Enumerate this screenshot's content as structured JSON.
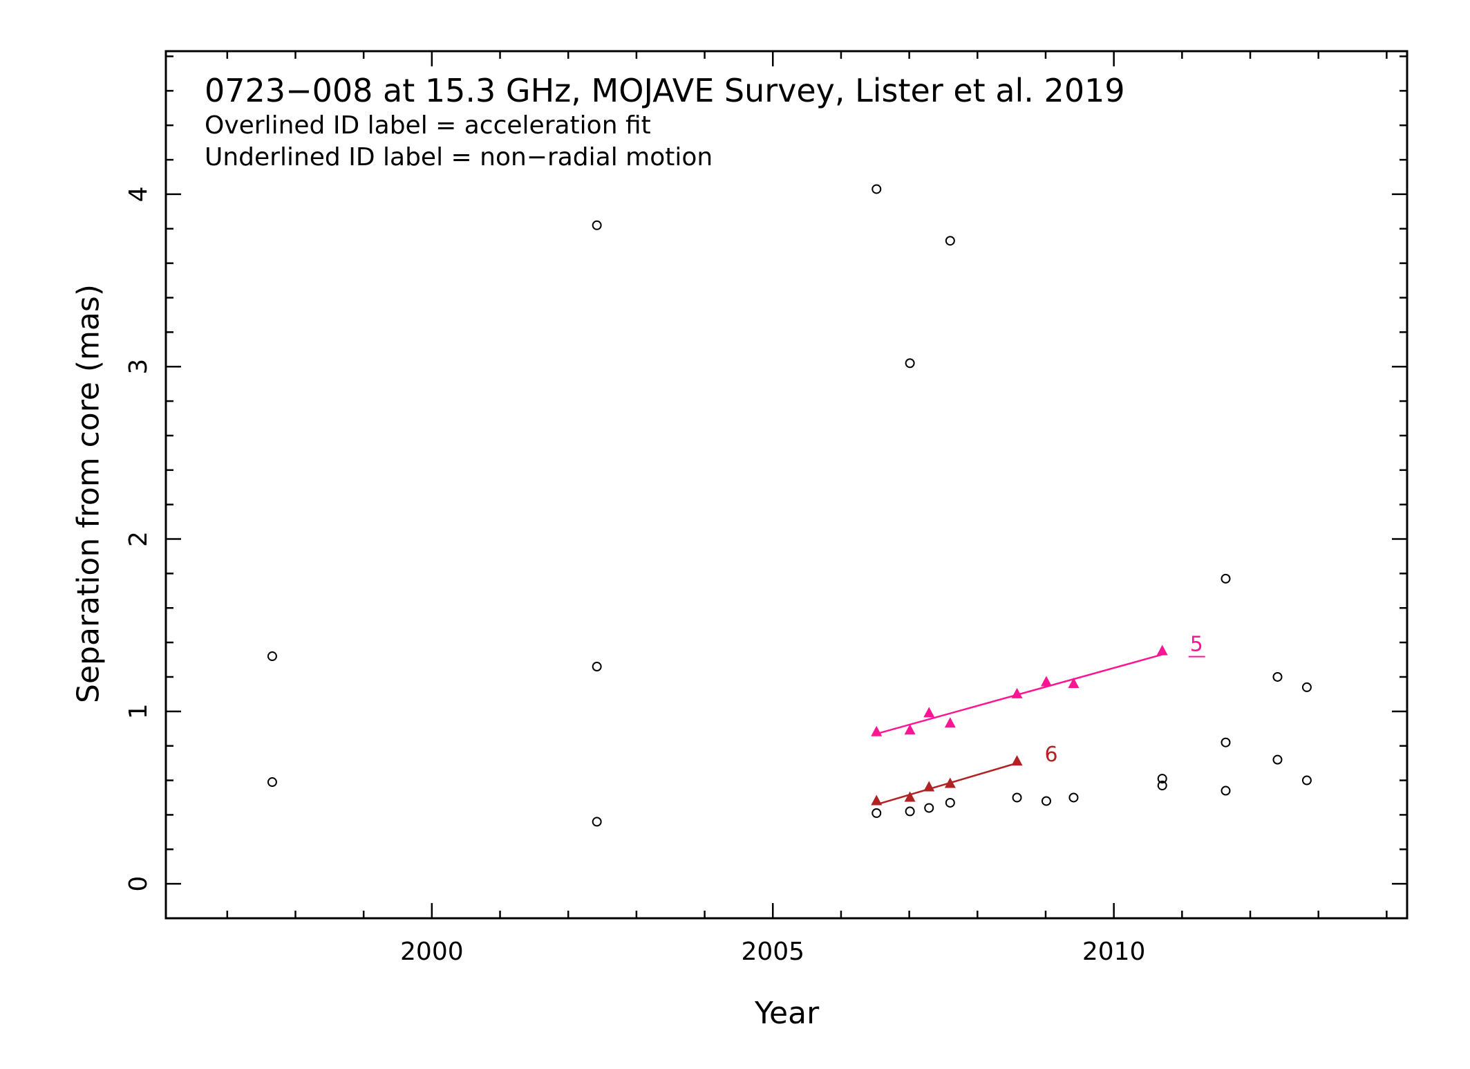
{
  "chart_data": {
    "type": "scatter",
    "title": "0723−008 at 15.3 GHz, MOJAVE Survey, Lister et al. 2019",
    "notes": [
      "Overlined ID label = acceleration fit",
      "Underlined ID label = non−radial motion"
    ],
    "xlabel": "Year",
    "ylabel": "Separation from core (mas)",
    "xlim": [
      1996.1,
      2014.3
    ],
    "ylim": [
      -0.2,
      4.83
    ],
    "x_ticks": [
      2000,
      2005,
      2010
    ],
    "y_ticks": [
      0,
      1,
      2,
      3,
      4
    ],
    "x_tick_labels": [
      "2000",
      "2005",
      "2010"
    ],
    "y_tick_labels": [
      "0",
      "1",
      "2",
      "3",
      "4"
    ],
    "grid": false,
    "points": [
      {
        "x": 1997.66,
        "y": 1.32
      },
      {
        "x": 1997.66,
        "y": 0.59
      },
      {
        "x": 2002.42,
        "y": 3.82
      },
      {
        "x": 2002.42,
        "y": 1.26
      },
      {
        "x": 2002.42,
        "y": 0.36
      },
      {
        "x": 2006.52,
        "y": 4.03
      },
      {
        "x": 2006.52,
        "y": 0.41
      },
      {
        "x": 2007.01,
        "y": 3.02
      },
      {
        "x": 2007.01,
        "y": 0.42
      },
      {
        "x": 2007.29,
        "y": 0.44
      },
      {
        "x": 2007.6,
        "y": 3.73
      },
      {
        "x": 2007.6,
        "y": 0.47
      },
      {
        "x": 2008.58,
        "y": 0.5
      },
      {
        "x": 2009.01,
        "y": 0.48
      },
      {
        "x": 2009.41,
        "y": 0.5
      },
      {
        "x": 2010.71,
        "y": 0.61
      },
      {
        "x": 2010.71,
        "y": 0.57
      },
      {
        "x": 2011.64,
        "y": 1.77
      },
      {
        "x": 2011.64,
        "y": 0.82
      },
      {
        "x": 2011.64,
        "y": 0.54
      },
      {
        "x": 2012.4,
        "y": 1.2
      },
      {
        "x": 2012.4,
        "y": 0.72
      },
      {
        "x": 2012.83,
        "y": 1.14
      },
      {
        "x": 2012.83,
        "y": 0.6
      }
    ],
    "series": [
      {
        "name": "5",
        "label_style": "underlined",
        "color": "#ff1493",
        "x": [
          2006.52,
          2007.01,
          2007.29,
          2007.6,
          2008.58,
          2009.01,
          2009.41,
          2010.71
        ],
        "y": [
          0.88,
          0.89,
          0.99,
          0.93,
          1.1,
          1.17,
          1.16,
          1.35
        ],
        "fit": {
          "x": [
            2006.52,
            2010.71
          ],
          "y": [
            0.87,
            1.33
          ]
        }
      },
      {
        "name": "6",
        "label_style": "plain",
        "color": "#b22222",
        "x": [
          2006.52,
          2007.01,
          2007.29,
          2007.6,
          2008.58
        ],
        "y": [
          0.48,
          0.5,
          0.56,
          0.58,
          0.71
        ],
        "fit": {
          "x": [
            2006.52,
            2008.58
          ],
          "y": [
            0.46,
            0.7
          ]
        }
      }
    ]
  }
}
